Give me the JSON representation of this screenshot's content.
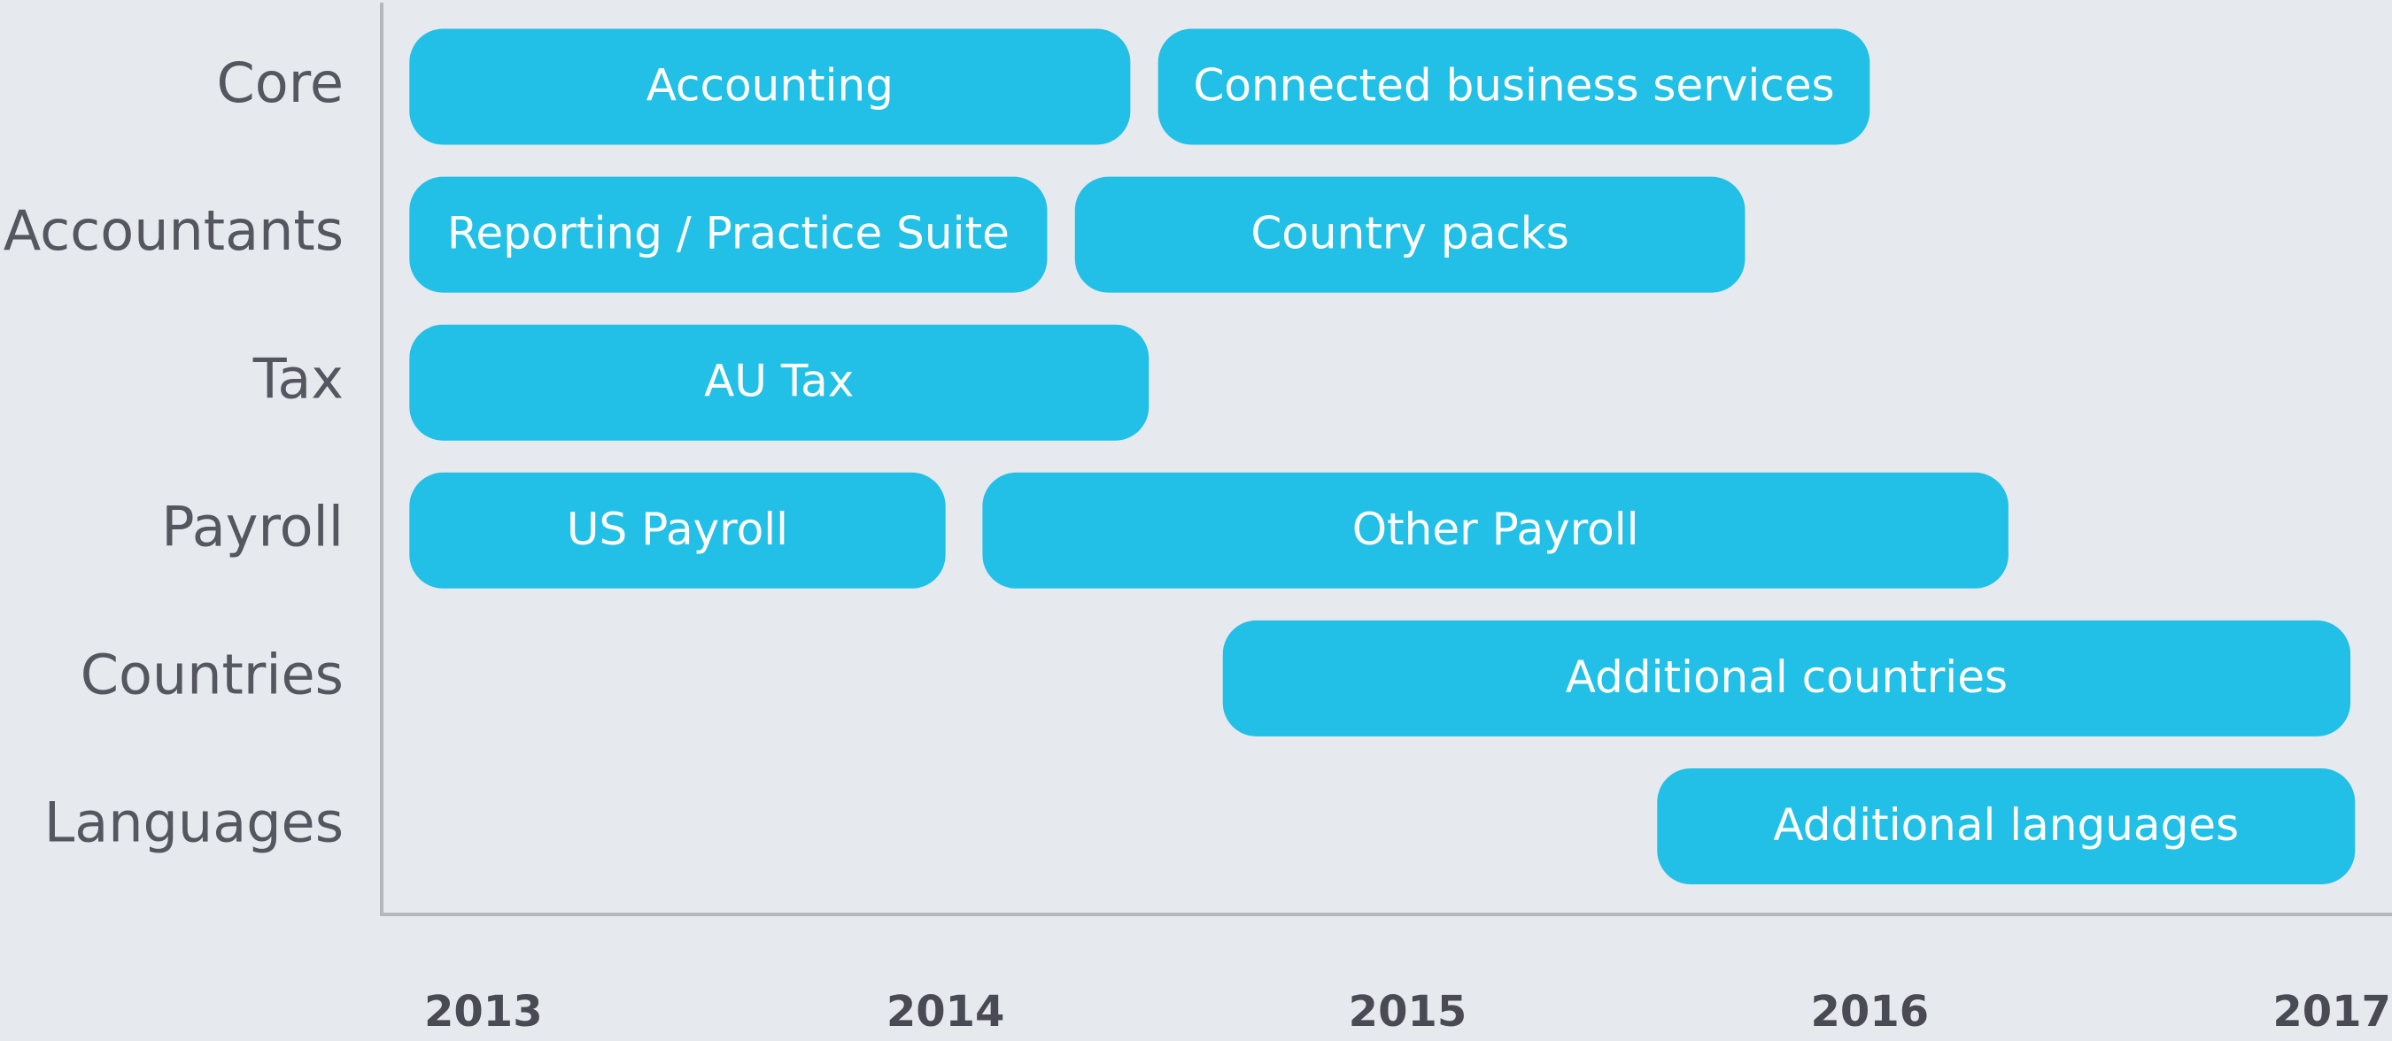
{
  "chart_data": {
    "type": "gantt",
    "rows": [
      {
        "name": "Core",
        "bars": [
          {
            "label": "Accounting",
            "start": 2012.84,
            "end": 2014.4
          },
          {
            "label": "Connected business services",
            "start": 2014.46,
            "end": 2016.0
          }
        ]
      },
      {
        "name": "Accountants",
        "bars": [
          {
            "label": "Reporting / Practice Suite",
            "start": 2012.84,
            "end": 2014.22
          },
          {
            "label": "Country packs",
            "start": 2014.28,
            "end": 2015.73
          }
        ]
      },
      {
        "name": "Tax",
        "bars": [
          {
            "label": "AU Tax",
            "start": 2012.84,
            "end": 2014.44
          }
        ]
      },
      {
        "name": "Payroll",
        "bars": [
          {
            "label": "US Payroll",
            "start": 2012.84,
            "end": 2014.0
          },
          {
            "label": "Other Payroll",
            "start": 2014.08,
            "end": 2016.3
          }
        ]
      },
      {
        "name": "Countries",
        "bars": [
          {
            "label": "Additional countries",
            "start": 2014.6,
            "end": 2017.04
          }
        ]
      },
      {
        "name": "Languages",
        "bars": [
          {
            "label": "Additional languages",
            "start": 2015.54,
            "end": 2017.05
          }
        ]
      }
    ],
    "color": "#22c0e6",
    "xlim": [
      2012.78,
      2017.13
    ],
    "xticks": [
      2013,
      2014,
      2015,
      2016,
      2017
    ]
  }
}
